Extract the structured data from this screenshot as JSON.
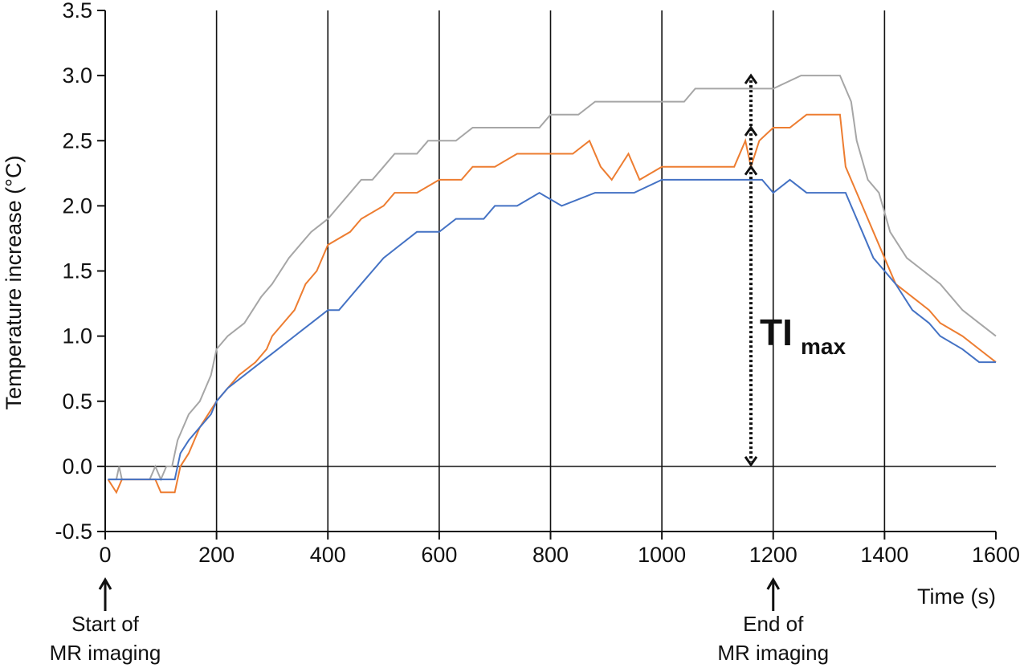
{
  "chart_data": {
    "type": "line",
    "xlabel": "Time (s)",
    "ylabel": "Temperature increase (°C)",
    "xlim": [
      0,
      1600
    ],
    "ylim": [
      -0.5,
      3.5
    ],
    "xticks": [
      0,
      200,
      400,
      600,
      800,
      1000,
      1200,
      1400,
      1600
    ],
    "yticks": [
      -0.5,
      0.0,
      0.5,
      1.0,
      1.5,
      2.0,
      2.5,
      3.0,
      3.5
    ],
    "xtick_labels": [
      "0",
      "200",
      "400",
      "600",
      "800",
      "1000",
      "1200",
      "1400",
      "1600"
    ],
    "ytick_labels": [
      "-0.5",
      "0.0",
      "0.5",
      "1.0",
      "1.5",
      "2.0",
      "2.5",
      "3.0",
      "3.5"
    ],
    "vertical_gridlines_at": [
      200,
      400,
      600,
      800,
      1000,
      1200,
      1400
    ],
    "zero_line": true,
    "series": [
      {
        "color": "#a6a6a6",
        "points": [
          [
            5,
            -0.1
          ],
          [
            20,
            -0.1
          ],
          [
            25,
            0.0
          ],
          [
            30,
            -0.1
          ],
          [
            80,
            -0.1
          ],
          [
            90,
            0.0
          ],
          [
            100,
            -0.1
          ],
          [
            110,
            0.0
          ],
          [
            120,
            0.0
          ],
          [
            130,
            0.2
          ],
          [
            150,
            0.4
          ],
          [
            170,
            0.5
          ],
          [
            190,
            0.7
          ],
          [
            200,
            0.9
          ],
          [
            220,
            1.0
          ],
          [
            250,
            1.1
          ],
          [
            280,
            1.3
          ],
          [
            300,
            1.4
          ],
          [
            330,
            1.6
          ],
          [
            350,
            1.7
          ],
          [
            370,
            1.8
          ],
          [
            400,
            1.9
          ],
          [
            420,
            2.0
          ],
          [
            440,
            2.1
          ],
          [
            460,
            2.2
          ],
          [
            480,
            2.2
          ],
          [
            500,
            2.3
          ],
          [
            520,
            2.4
          ],
          [
            560,
            2.4
          ],
          [
            580,
            2.5
          ],
          [
            600,
            2.5
          ],
          [
            630,
            2.5
          ],
          [
            660,
            2.6
          ],
          [
            700,
            2.6
          ],
          [
            740,
            2.6
          ],
          [
            780,
            2.6
          ],
          [
            800,
            2.7
          ],
          [
            850,
            2.7
          ],
          [
            880,
            2.8
          ],
          [
            950,
            2.8
          ],
          [
            1000,
            2.8
          ],
          [
            1040,
            2.8
          ],
          [
            1060,
            2.9
          ],
          [
            1150,
            2.9
          ],
          [
            1200,
            2.9
          ],
          [
            1250,
            3.0
          ],
          [
            1320,
            3.0
          ],
          [
            1340,
            2.8
          ],
          [
            1350,
            2.5
          ],
          [
            1370,
            2.2
          ],
          [
            1390,
            2.1
          ],
          [
            1410,
            1.8
          ],
          [
            1440,
            1.6
          ],
          [
            1470,
            1.5
          ],
          [
            1500,
            1.4
          ],
          [
            1540,
            1.2
          ],
          [
            1570,
            1.1
          ],
          [
            1600,
            1.0
          ]
        ]
      },
      {
        "color": "#ed7d31",
        "points": [
          [
            5,
            -0.1
          ],
          [
            20,
            -0.2
          ],
          [
            30,
            -0.1
          ],
          [
            60,
            -0.1
          ],
          [
            90,
            -0.1
          ],
          [
            100,
            -0.2
          ],
          [
            125,
            -0.2
          ],
          [
            135,
            0.0
          ],
          [
            150,
            0.1
          ],
          [
            170,
            0.3
          ],
          [
            200,
            0.5
          ],
          [
            220,
            0.6
          ],
          [
            240,
            0.7
          ],
          [
            270,
            0.8
          ],
          [
            290,
            0.9
          ],
          [
            300,
            1.0
          ],
          [
            320,
            1.1
          ],
          [
            340,
            1.2
          ],
          [
            360,
            1.4
          ],
          [
            380,
            1.5
          ],
          [
            400,
            1.7
          ],
          [
            440,
            1.8
          ],
          [
            460,
            1.9
          ],
          [
            500,
            2.0
          ],
          [
            520,
            2.1
          ],
          [
            560,
            2.1
          ],
          [
            600,
            2.2
          ],
          [
            640,
            2.2
          ],
          [
            660,
            2.3
          ],
          [
            700,
            2.3
          ],
          [
            740,
            2.4
          ],
          [
            800,
            2.4
          ],
          [
            840,
            2.4
          ],
          [
            870,
            2.5
          ],
          [
            890,
            2.3
          ],
          [
            910,
            2.2
          ],
          [
            940,
            2.4
          ],
          [
            960,
            2.2
          ],
          [
            1000,
            2.3
          ],
          [
            1050,
            2.3
          ],
          [
            1100,
            2.3
          ],
          [
            1130,
            2.3
          ],
          [
            1150,
            2.5
          ],
          [
            1160,
            2.3
          ],
          [
            1175,
            2.5
          ],
          [
            1200,
            2.6
          ],
          [
            1230,
            2.6
          ],
          [
            1260,
            2.7
          ],
          [
            1320,
            2.7
          ],
          [
            1330,
            2.3
          ],
          [
            1340,
            2.2
          ],
          [
            1360,
            2.0
          ],
          [
            1380,
            1.8
          ],
          [
            1400,
            1.6
          ],
          [
            1420,
            1.4
          ],
          [
            1450,
            1.3
          ],
          [
            1480,
            1.2
          ],
          [
            1500,
            1.1
          ],
          [
            1540,
            1.0
          ],
          [
            1570,
            0.9
          ],
          [
            1600,
            0.8
          ]
        ]
      },
      {
        "color": "#4472c4",
        "points": [
          [
            5,
            -0.1
          ],
          [
            30,
            -0.1
          ],
          [
            80,
            -0.1
          ],
          [
            95,
            -0.1
          ],
          [
            110,
            -0.1
          ],
          [
            125,
            -0.1
          ],
          [
            135,
            0.1
          ],
          [
            150,
            0.2
          ],
          [
            170,
            0.3
          ],
          [
            190,
            0.4
          ],
          [
            200,
            0.5
          ],
          [
            220,
            0.6
          ],
          [
            250,
            0.7
          ],
          [
            280,
            0.8
          ],
          [
            310,
            0.9
          ],
          [
            340,
            1.0
          ],
          [
            370,
            1.1
          ],
          [
            400,
            1.2
          ],
          [
            420,
            1.2
          ],
          [
            440,
            1.3
          ],
          [
            460,
            1.4
          ],
          [
            480,
            1.5
          ],
          [
            500,
            1.6
          ],
          [
            530,
            1.7
          ],
          [
            560,
            1.8
          ],
          [
            600,
            1.8
          ],
          [
            630,
            1.9
          ],
          [
            680,
            1.9
          ],
          [
            700,
            2.0
          ],
          [
            740,
            2.0
          ],
          [
            780,
            2.1
          ],
          [
            820,
            2.0
          ],
          [
            880,
            2.1
          ],
          [
            950,
            2.1
          ],
          [
            1000,
            2.2
          ],
          [
            1050,
            2.2
          ],
          [
            1100,
            2.2
          ],
          [
            1150,
            2.2
          ],
          [
            1180,
            2.2
          ],
          [
            1200,
            2.1
          ],
          [
            1230,
            2.2
          ],
          [
            1260,
            2.1
          ],
          [
            1300,
            2.1
          ],
          [
            1330,
            2.1
          ],
          [
            1340,
            2.0
          ],
          [
            1360,
            1.8
          ],
          [
            1380,
            1.6
          ],
          [
            1400,
            1.5
          ],
          [
            1420,
            1.4
          ],
          [
            1450,
            1.2
          ],
          [
            1480,
            1.1
          ],
          [
            1500,
            1.0
          ],
          [
            1540,
            0.9
          ],
          [
            1570,
            0.8
          ],
          [
            1600,
            0.8
          ]
        ]
      }
    ],
    "annotations": {
      "timax_label": "TI",
      "timax_sub": "max",
      "start_label_line1": "Start of",
      "start_label_line2": "MR imaging",
      "end_label_line1": "End of",
      "end_label_line2": "MR imaging",
      "timax_x": 1160,
      "timax_y_bottom": 0.0,
      "timax_marks": [
        3.0,
        2.6,
        2.3
      ],
      "start_x": 0,
      "end_x": 1200
    }
  }
}
